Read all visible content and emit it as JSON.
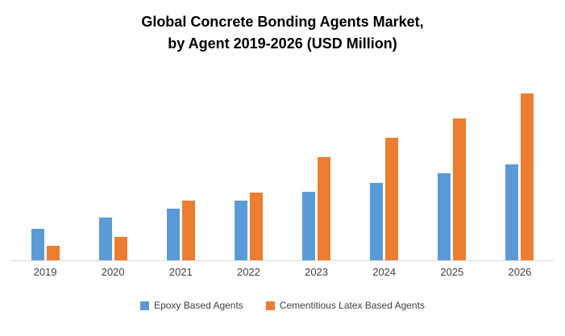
{
  "chart_data": {
    "type": "bar",
    "title_line1": "Global Concrete Bonding Agents Market,",
    "title_line2": "by Agent 2019-2026 (USD Million)",
    "categories": [
      "2019",
      "2020",
      "2021",
      "2022",
      "2023",
      "2024",
      "2025",
      "2026"
    ],
    "series": [
      {
        "name": "Epoxy Based Agents",
        "color": "#5B9BD5",
        "values": [
          40,
          54,
          65,
          76,
          87,
          98,
          110,
          122
        ]
      },
      {
        "name": "Cementitious Latex Based Agents",
        "color": "#ED7D31",
        "values": [
          18,
          30,
          76,
          86,
          131,
          156,
          180,
          212
        ]
      }
    ],
    "xlabel": "",
    "ylabel": "",
    "ylim": [
      0,
      220
    ],
    "grid": false,
    "legend_position": "bottom",
    "y_axis_labels_visible": false
  }
}
